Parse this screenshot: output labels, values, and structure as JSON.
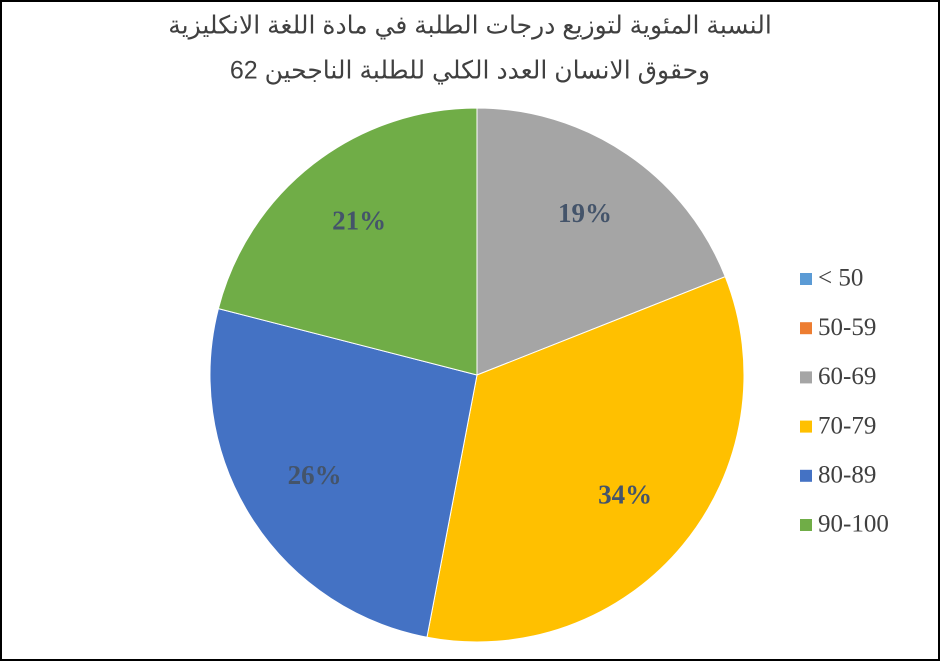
{
  "chart_data": {
    "type": "pie",
    "title": [
      "النسبة المئوية لتوزيع درجات الطلبة في مادة اللغة الانكليزية",
      "وحقوق الانسان العدد الكلي للطلبة الناجحين 62"
    ],
    "categories": [
      "< 50",
      "50-59",
      "60-69",
      "70-79",
      "80-89",
      "90-100"
    ],
    "values": [
      0,
      0,
      19,
      34,
      26,
      21
    ],
    "value_labels": [
      null,
      null,
      "19%",
      "34%",
      "26%",
      "21%"
    ],
    "colors": [
      "#5b9bd5",
      "#ed7d31",
      "#a5a5a5",
      "#ffc000",
      "#4472c4",
      "#70ad47"
    ],
    "legend": "right"
  }
}
